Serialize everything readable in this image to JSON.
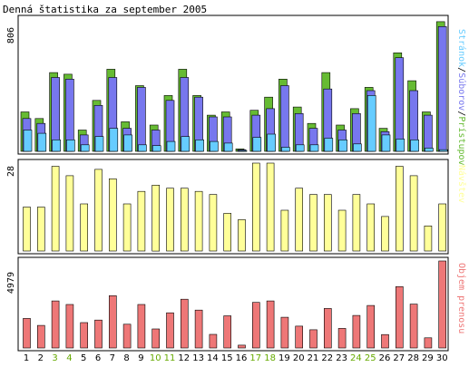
{
  "chart_data": {
    "type": "bar",
    "title": "Denná štatistika za september 2005",
    "categories": [
      "1",
      "2",
      "3",
      "4",
      "5",
      "6",
      "7",
      "8",
      "9",
      "10",
      "11",
      "12",
      "13",
      "14",
      "15",
      "16",
      "17",
      "18",
      "19",
      "20",
      "21",
      "22",
      "23",
      "24",
      "25",
      "26",
      "27",
      "28",
      "29",
      "30"
    ],
    "weekend_days": [
      "3",
      "4",
      "10",
      "11",
      "17",
      "18",
      "24",
      "25"
    ],
    "panels": [
      {
        "id": "traffic",
        "ymax_label": "806",
        "ymax": 806,
        "legend": [
          "Stránok",
          "Súborov",
          "Prístupov"
        ],
        "series": [
          {
            "name": "Prístupov",
            "color": "#66bb33",
            "values": [
              240,
              200,
              480,
              470,
              130,
              310,
              500,
              180,
              400,
              160,
              340,
              500,
              340,
              220,
              240,
              15,
              250,
              330,
              440,
              270,
              170,
              480,
              160,
              260,
              390,
              140,
              600,
              430,
              240,
              790
            ]
          },
          {
            "name": "Súborov",
            "color": "#7777ee",
            "values": [
              200,
              170,
              450,
              440,
              100,
              280,
              450,
              140,
              390,
              130,
              310,
              450,
              330,
              210,
              210,
              10,
              220,
              260,
              400,
              230,
              140,
              380,
              130,
              230,
              370,
              120,
              570,
              370,
              220,
              760
            ]
          },
          {
            "name": "Stránok",
            "color": "#66ccff",
            "values": [
              130,
              110,
              70,
              70,
              40,
              90,
              140,
              100,
              40,
              35,
              60,
              90,
              70,
              60,
              50,
              5,
              85,
              105,
              25,
              40,
              40,
              80,
              70,
              45,
              340,
              100,
              75,
              70,
              20,
              10
            ]
          }
        ]
      },
      {
        "id": "visits",
        "ymax_label": "28",
        "ymax": 28,
        "legend": [
          "Návštev"
        ],
        "series": [
          {
            "name": "Návštev",
            "color": "#ffff99",
            "values": [
              14,
              14,
              27,
              24,
              15,
              26,
              23,
              15,
              19,
              21,
              20,
              20,
              19,
              18,
              12,
              10,
              28,
              28,
              13,
              20,
              18,
              18,
              13,
              18,
              15,
              11,
              27,
              24,
              8,
              15
            ]
          }
        ]
      },
      {
        "id": "bytes",
        "ymax_label": "4979",
        "ymax": 4979,
        "legend": [
          "Objem prenosu"
        ],
        "series": [
          {
            "name": "Objem prenosu",
            "color": "#ee7777",
            "values": [
              1690,
              1290,
              2690,
              2490,
              1450,
              1600,
              2990,
              1360,
              2490,
              1090,
              2010,
              2790,
              2170,
              780,
              1840,
              160,
              2610,
              2690,
              1760,
              1250,
              1040,
              2260,
              1120,
              1860,
              2430,
              770,
              3510,
              2510,
              580,
              4979
            ]
          }
        ]
      }
    ],
    "colors": {
      "weekday_label": "#000000",
      "weekend_label": "#66aa00",
      "panel_border": "#000000",
      "background": "#ffffff"
    }
  }
}
